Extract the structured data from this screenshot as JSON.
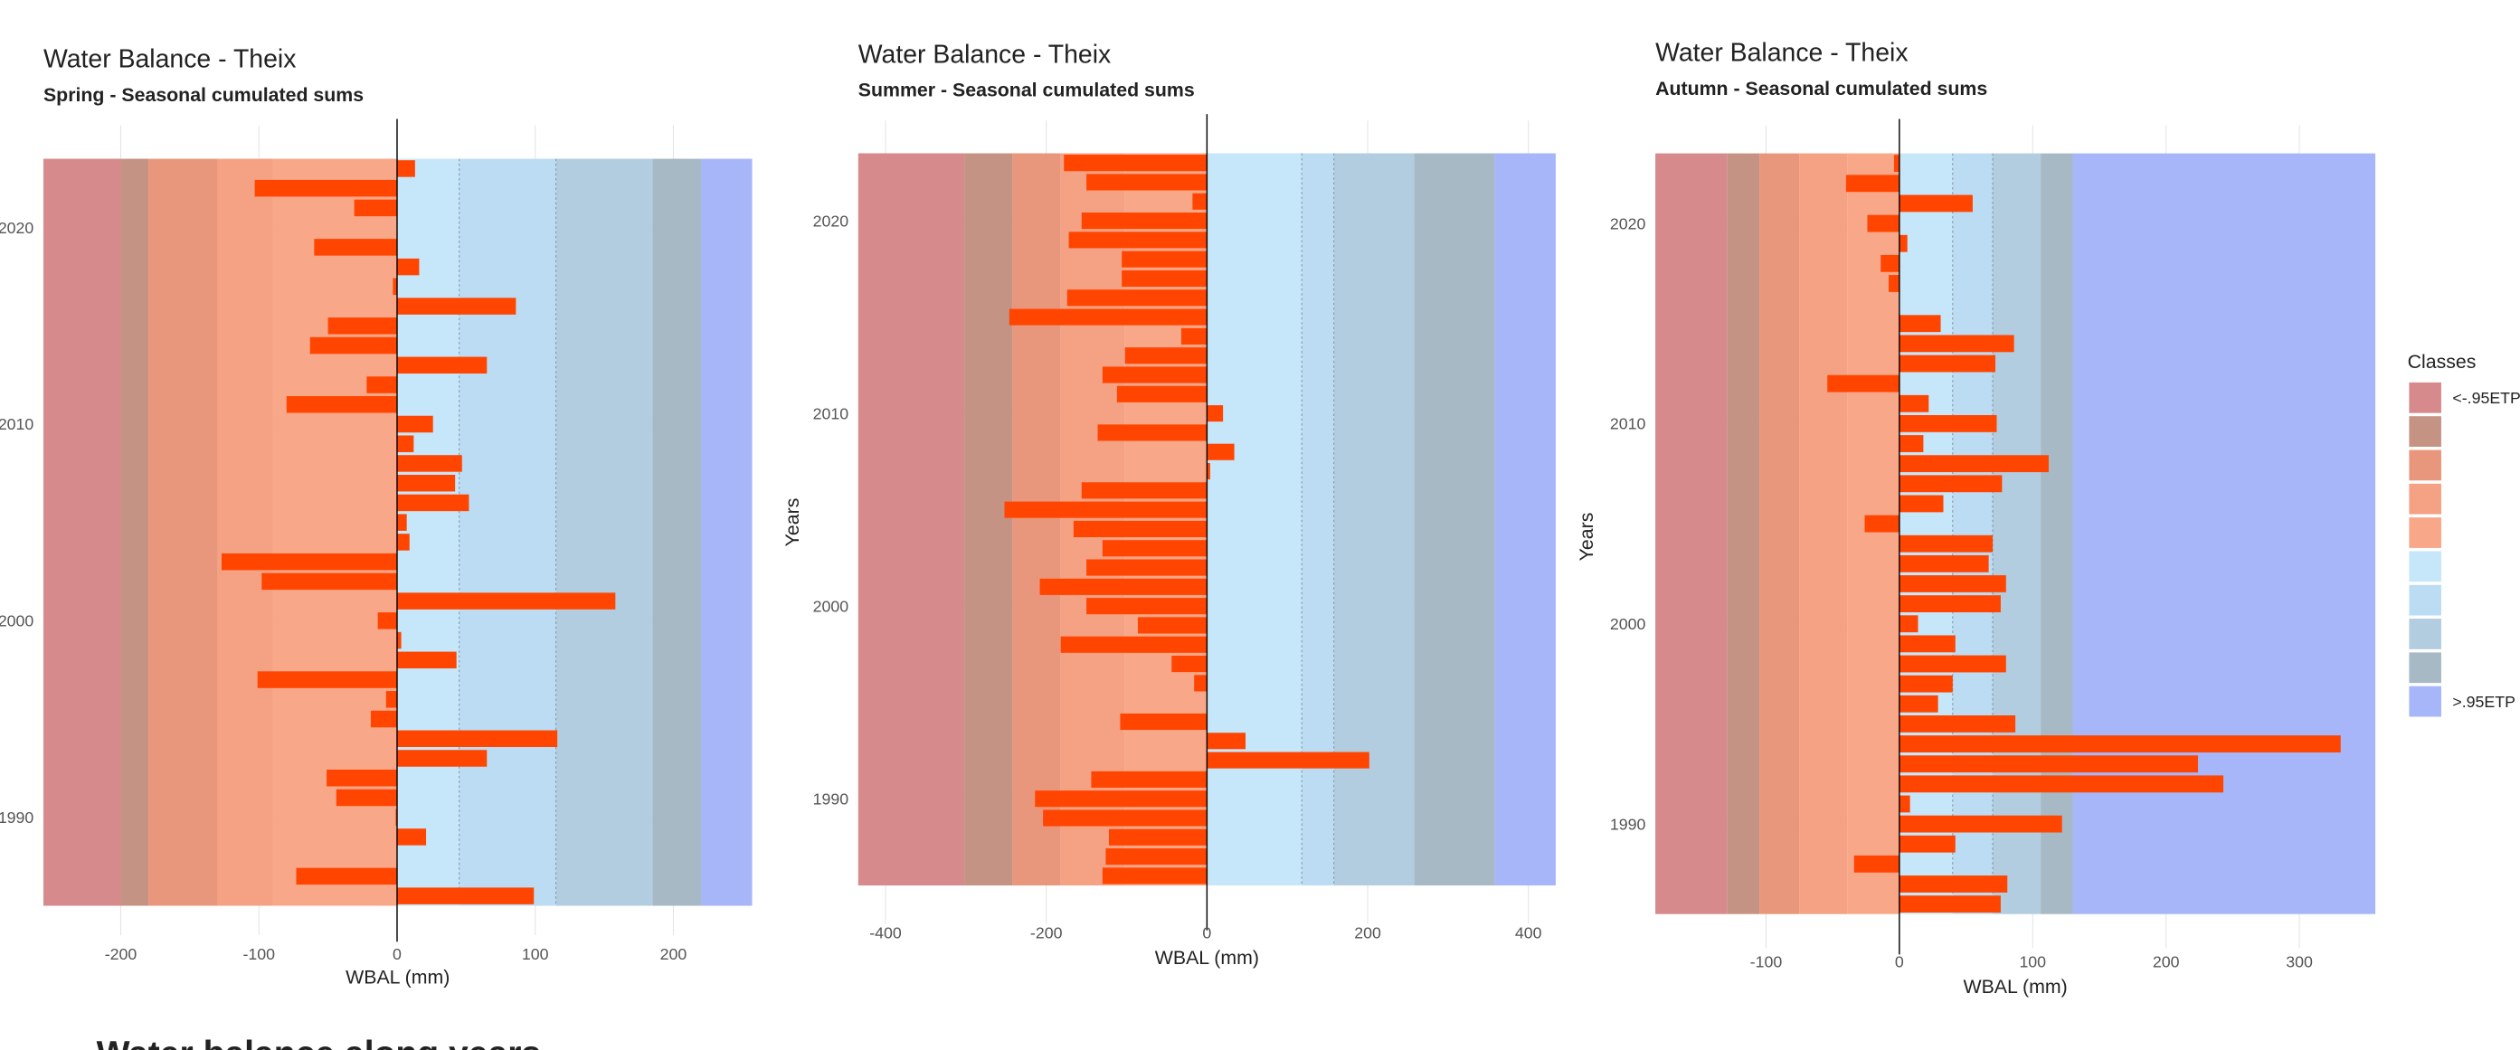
{
  "heading": "Water balance along years",
  "legend": {
    "title": "Classes",
    "labels": [
      "<-.95ETP",
      null,
      null,
      null,
      null,
      null,
      null,
      null,
      null,
      ">.95ETP"
    ],
    "colors": [
      "#d68a8c",
      "#c59383",
      "#e8977c",
      "#f4a184",
      "#f9a789",
      "#c6e6fa",
      "#bcdcf3",
      "#b2cde0",
      "#a7b9c4",
      "#a7b6f8"
    ]
  },
  "chart_data": [
    {
      "type": "bar",
      "title": "Water Balance - Theix",
      "subtitle": "Spring - Seasonal cumulated sums",
      "xlabel": "WBAL (mm)",
      "color": "#ff4500",
      "x": [
        2023,
        2022,
        2021,
        2020,
        2019,
        2018,
        2017,
        2016,
        2015,
        2014,
        2013,
        2012,
        2011,
        2010,
        2009,
        2008,
        2007,
        2006,
        2005,
        2004,
        2003,
        2002,
        2001,
        2000,
        1999,
        1998,
        1997,
        1996,
        1995,
        1994,
        1993,
        1992,
        1991,
        1990,
        1989,
        1988,
        1987,
        1986
      ],
      "values": [
        13,
        -103,
        -31,
        0,
        -60,
        16,
        -3,
        86,
        -50,
        -63,
        65,
        -22,
        -80,
        26,
        12,
        47,
        42,
        52,
        7,
        9,
        -127,
        -98,
        158,
        -14,
        3,
        43,
        -101,
        -8,
        -19,
        116,
        65,
        -51,
        -44,
        -1,
        21,
        0,
        -73,
        99
      ],
      "class_bounds": [
        -200,
        -180,
        -130,
        -90,
        0,
        45,
        115,
        185,
        220
      ],
      "xlim": [
        -256,
        257
      ],
      "xticks": [
        -200,
        -100,
        0,
        100,
        200
      ],
      "ylim": [
        1984,
        2025.2
      ],
      "yticks": [
        1990,
        2000,
        2010,
        2020
      ],
      "grid": true
    },
    {
      "type": "bar",
      "title": "Water Balance - Theix",
      "subtitle": "Summer - Seasonal cumulated sums",
      "xlabel": "WBAL (mm)",
      "ylabel": "Years",
      "color": "#ff4500",
      "x": [
        2023,
        2022,
        2021,
        2020,
        2019,
        2018,
        2017,
        2016,
        2015,
        2014,
        2013,
        2012,
        2011,
        2010,
        2009,
        2008,
        2007,
        2006,
        2005,
        2004,
        2003,
        2002,
        2001,
        2000,
        1999,
        1998,
        1997,
        1996,
        1995,
        1994,
        1993,
        1992,
        1991,
        1990,
        1989,
        1988,
        1987,
        1986
      ],
      "values": [
        -178,
        -150,
        -18,
        -156,
        -172,
        -106,
        -106,
        -174,
        -246,
        -32,
        -102,
        -130,
        -112,
        20,
        -136,
        34,
        4,
        -156,
        -252,
        -166,
        -130,
        -150,
        -208,
        -150,
        -86,
        -182,
        -44,
        -16,
        0,
        -108,
        48,
        202,
        -144,
        -214,
        -204,
        -122,
        -126,
        -130
      ],
      "class_bounds": [
        -302,
        -242,
        -182,
        -102,
        0,
        118,
        158,
        258,
        358
      ],
      "xlim": [
        -434,
        434
      ],
      "xticks": [
        -400,
        -200,
        0,
        200,
        400
      ],
      "ylim": [
        1983.5,
        2025.2
      ],
      "yticks": [
        1990,
        2000,
        2010,
        2020
      ],
      "grid": true
    },
    {
      "type": "bar",
      "title": "Water Balance - Theix",
      "subtitle": "Autumn - Seasonal cumulated sums",
      "xlabel": "WBAL (mm)",
      "ylabel": "Years",
      "color": "#ff4500",
      "x": [
        2023,
        2022,
        2021,
        2020,
        2019,
        2018,
        2017,
        2016,
        2015,
        2014,
        2013,
        2012,
        2011,
        2010,
        2009,
        2008,
        2007,
        2006,
        2005,
        2004,
        2003,
        2002,
        2001,
        2000,
        1999,
        1998,
        1997,
        1996,
        1995,
        1994,
        1993,
        1992,
        1991,
        1990,
        1989,
        1988,
        1987,
        1986
      ],
      "values": [
        -4,
        -40,
        55,
        -24,
        6,
        -14,
        -8,
        0,
        31,
        86,
        72,
        -54,
        22,
        73,
        18,
        112,
        77,
        33,
        -26,
        70,
        67,
        80,
        76,
        14,
        42,
        80,
        40,
        29,
        87,
        331,
        224,
        243,
        8,
        122,
        42,
        -34,
        81,
        76
      ],
      "class_bounds": [
        -129,
        -105,
        -75,
        -39,
        0,
        40,
        70,
        106,
        130
      ],
      "xlim": [
        -183,
        357
      ],
      "xticks": [
        -100,
        0,
        100,
        200,
        300
      ],
      "ylim": [
        1983.8,
        2024.9
      ],
      "yticks": [
        1990,
        2000,
        2010,
        2020
      ],
      "grid": true
    }
  ]
}
